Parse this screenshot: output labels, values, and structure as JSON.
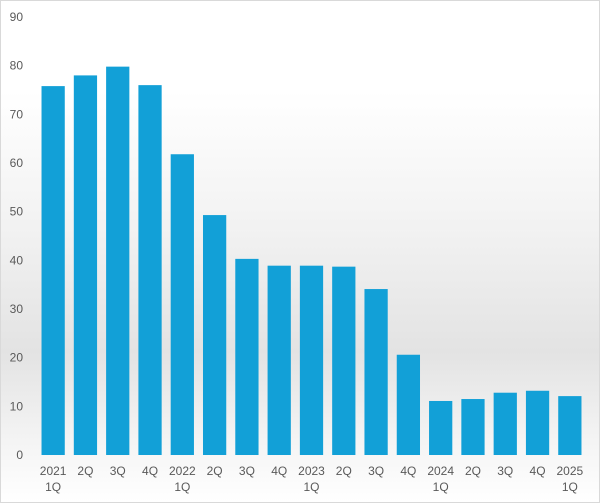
{
  "chart_data": {
    "type": "bar",
    "categories": [
      [
        "2021",
        "1Q"
      ],
      [
        "2Q"
      ],
      [
        "3Q"
      ],
      [
        "4Q"
      ],
      [
        "2022",
        "1Q"
      ],
      [
        "2Q"
      ],
      [
        "3Q"
      ],
      [
        "4Q"
      ],
      [
        "2023",
        "1Q"
      ],
      [
        "2Q"
      ],
      [
        "3Q"
      ],
      [
        "4Q"
      ],
      [
        "2024",
        "1Q"
      ],
      [
        "2Q"
      ],
      [
        "3Q"
      ],
      [
        "4Q"
      ],
      [
        "2025",
        "1Q"
      ]
    ],
    "values": [
      75.8,
      78.0,
      79.8,
      76.0,
      61.8,
      49.3,
      40.3,
      38.9,
      38.9,
      38.7,
      34.1,
      20.6,
      11.1,
      11.5,
      12.8,
      13.2,
      12.1
    ],
    "title": "",
    "xlabel": "",
    "ylabel": "",
    "ylim": [
      0,
      90
    ],
    "yticks": [
      0,
      10,
      20,
      30,
      40,
      50,
      60,
      70,
      80,
      90
    ],
    "grid": false,
    "legend": "none",
    "colors": {
      "bar": "#12a0d7",
      "axis_text": "#595959"
    }
  }
}
